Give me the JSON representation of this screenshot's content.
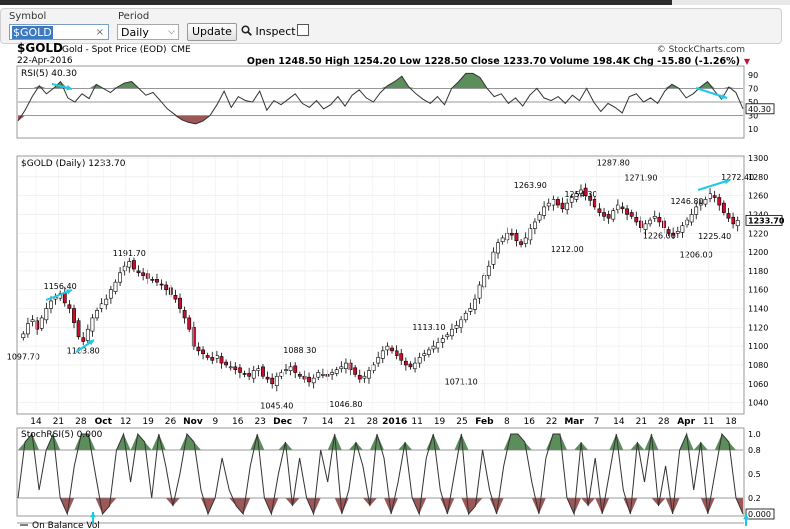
{
  "toolbar": {
    "symbol_label": "Symbol",
    "symbol_value": "$GOLD",
    "period_label": "Period",
    "period_value": "Daily",
    "update_label": "Update",
    "inspect_label": "Inspect"
  },
  "header": {
    "ticker": "$GOLD",
    "name": "Gold - Spot Price (EOD)",
    "exchange": "CME",
    "date": "22-Apr-2016",
    "source": "© StockCharts.com",
    "ohlc_text": "Open 1248.50  High 1254.20  Low 1228.50  Close 1233.70  Volume 198.4K  Chg -15.80 (-1.26%)",
    "chg_arrow": "▼"
  },
  "colors": {
    "up_candle": "#ffffff",
    "down_candle": "#c8102e",
    "overbought_fill": "#3f7a3f",
    "oversold_fill": "#8b3b3b",
    "annotation_arrow": "#1ec8e6"
  },
  "chart_data": [
    {
      "type": "line",
      "panel": "indicator",
      "title": "RSI(5) 40.30",
      "yticks": [
        10,
        30,
        50,
        70,
        90
      ],
      "ylim": [
        0,
        100
      ],
      "reference_lines": [
        30,
        50,
        70
      ],
      "last_value_label": "40.30",
      "values": [
        22,
        38,
        58,
        74,
        62,
        70,
        80,
        56,
        50,
        62,
        55,
        76,
        70,
        64,
        72,
        78,
        80,
        70,
        60,
        64,
        52,
        40,
        32,
        24,
        20,
        18,
        22,
        30,
        46,
        66,
        42,
        58,
        52,
        50,
        66,
        38,
        52,
        46,
        54,
        62,
        48,
        42,
        52,
        40,
        46,
        58,
        44,
        60,
        68,
        56,
        50,
        64,
        74,
        80,
        88,
        72,
        62,
        54,
        48,
        58,
        46,
        70,
        80,
        92,
        92,
        86,
        70,
        58,
        62,
        48,
        56,
        44,
        60,
        70,
        56,
        52,
        58,
        48,
        60,
        52,
        70,
        50,
        36,
        48,
        42,
        34,
        58,
        62,
        50,
        56,
        48,
        66,
        76,
        70,
        56,
        62,
        72,
        80,
        66,
        54,
        72,
        64,
        40
      ]
    },
    {
      "type": "candlestick",
      "panel": "price",
      "title": "$GOLD (Daily) 1233.70",
      "ylim": [
        1030,
        1300
      ],
      "yticks": [
        1040,
        1060,
        1080,
        1100,
        1120,
        1140,
        1160,
        1180,
        1200,
        1220,
        1240,
        1260,
        1280,
        1300
      ],
      "xtick_labels": [
        "14",
        "21",
        "28",
        "Oct",
        "12",
        "19",
        "26",
        "Nov",
        "9",
        "16",
        "23",
        "Dec",
        "7",
        "14",
        "21",
        "28",
        "2016",
        "11",
        "19",
        "25",
        "Feb",
        "8",
        "16",
        "22",
        "Mar",
        "7",
        "14",
        "21",
        "28",
        "Apr",
        "11",
        "18"
      ],
      "last_price_label": "1233.70",
      "closes": [
        1113,
        1124,
        1128,
        1118,
        1130,
        1140,
        1148,
        1152,
        1156,
        1146,
        1140,
        1125,
        1110,
        1105,
        1118,
        1130,
        1138,
        1145,
        1150,
        1160,
        1168,
        1178,
        1185,
        1190,
        1182,
        1178,
        1175,
        1172,
        1170,
        1168,
        1165,
        1160,
        1155,
        1150,
        1140,
        1130,
        1118,
        1100,
        1095,
        1092,
        1088,
        1085,
        1090,
        1082,
        1080,
        1078,
        1075,
        1072,
        1070,
        1068,
        1074,
        1076,
        1068,
        1065,
        1060,
        1068,
        1072,
        1075,
        1078,
        1072,
        1068,
        1065,
        1062,
        1066,
        1072,
        1070,
        1068,
        1072,
        1075,
        1078,
        1082,
        1075,
        1070,
        1065,
        1068,
        1074,
        1080,
        1088,
        1095,
        1100,
        1095,
        1090,
        1085,
        1080,
        1078,
        1082,
        1088,
        1092,
        1096,
        1100,
        1104,
        1108,
        1112,
        1118,
        1122,
        1128,
        1135,
        1140,
        1150,
        1165,
        1175,
        1185,
        1200,
        1210,
        1215,
        1220,
        1218,
        1212,
        1208,
        1215,
        1225,
        1232,
        1240,
        1248,
        1252,
        1256,
        1250,
        1246,
        1252,
        1258,
        1262,
        1266,
        1260,
        1255,
        1248,
        1242,
        1238,
        1236,
        1244,
        1250,
        1246,
        1240,
        1238,
        1232,
        1226,
        1230,
        1234,
        1238,
        1232,
        1226,
        1220,
        1218,
        1222,
        1228,
        1234,
        1240,
        1248,
        1252,
        1256,
        1262,
        1258,
        1250,
        1242,
        1236,
        1230,
        1233.7
      ],
      "annotations": [
        {
          "text": "1097.70",
          "idx": 0,
          "price": 1097.7,
          "pos": "below"
        },
        {
          "text": "1156.40",
          "idx": 8,
          "price": 1156.4,
          "pos": "above"
        },
        {
          "text": "1103.80",
          "idx": 13,
          "price": 1103.8,
          "pos": "below"
        },
        {
          "text": "1191.70",
          "idx": 23,
          "price": 1191.7,
          "pos": "above"
        },
        {
          "text": "1045.40",
          "idx": 55,
          "price": 1045.4,
          "pos": "below"
        },
        {
          "text": "1088.30",
          "idx": 60,
          "price": 1088.3,
          "pos": "above"
        },
        {
          "text": "1046.80",
          "idx": 70,
          "price": 1046.8,
          "pos": "below"
        },
        {
          "text": "1113.10",
          "idx": 88,
          "price": 1113.1,
          "pos": "above"
        },
        {
          "text": "1071.10",
          "idx": 95,
          "price": 1071.1,
          "pos": "below"
        },
        {
          "text": "1263.90",
          "idx": 110,
          "price": 1263.9,
          "pos": "above"
        },
        {
          "text": "1212.00",
          "idx": 118,
          "price": 1212.0,
          "pos": "below"
        },
        {
          "text": "1254.30",
          "idx": 121,
          "price": 1254.3,
          "pos": "above"
        },
        {
          "text": "1287.80",
          "idx": 128,
          "price": 1287.8,
          "pos": "above"
        },
        {
          "text": "1271.90",
          "idx": 134,
          "price": 1271.9,
          "pos": "above"
        },
        {
          "text": "1226.00",
          "idx": 138,
          "price": 1226.0,
          "pos": "below"
        },
        {
          "text": "1246.80",
          "idx": 144,
          "price": 1246.8,
          "pos": "above"
        },
        {
          "text": "1206.00",
          "idx": 146,
          "price": 1206.0,
          "pos": "below"
        },
        {
          "text": "1225.40",
          "idx": 150,
          "price": 1225.4,
          "pos": "below"
        },
        {
          "text": "1272.40",
          "idx": 155,
          "price": 1272.4,
          "pos": "above"
        }
      ]
    },
    {
      "type": "line",
      "panel": "indicator",
      "title": "StochRSI(5) 0.000",
      "yticks": [
        0.2,
        0.5,
        0.8,
        1.0
      ],
      "ylim": [
        0,
        1
      ],
      "reference_lines": [
        0.2,
        0.8
      ],
      "last_value_label": "0.000",
      "values": [
        0.2,
        0.9,
        1.0,
        0.3,
        0.8,
        1.0,
        0.2,
        0.0,
        0.6,
        1.0,
        1.0,
        0.5,
        0.0,
        0.1,
        0.8,
        1.0,
        0.4,
        1.0,
        0.9,
        0.2,
        1.0,
        0.6,
        0.1,
        0.5,
        1.0,
        0.9,
        0.3,
        0.0,
        0.2,
        0.7,
        0.3,
        0.1,
        0.0,
        0.6,
        1.0,
        0.2,
        0.0,
        0.5,
        0.9,
        0.1,
        0.7,
        0.2,
        0.0,
        0.8,
        0.4,
        1.0,
        0.0,
        0.3,
        0.9,
        0.6,
        0.1,
        1.0,
        0.7,
        0.0,
        0.4,
        0.9,
        0.2,
        0.0,
        0.7,
        1.0,
        0.3,
        0.0,
        0.5,
        1.0,
        0.0,
        0.1,
        0.8,
        0.3,
        0.0,
        0.6,
        1.0,
        1.0,
        0.9,
        0.4,
        0.0,
        0.7,
        1.0,
        1.0,
        0.2,
        0.0,
        0.9,
        0.1,
        0.7,
        0.0,
        0.5,
        1.0,
        0.3,
        0.0,
        0.9,
        0.4,
        1.0,
        0.1,
        0.6,
        0.0,
        0.8,
        1.0,
        0.3,
        0.9,
        0.0,
        0.5,
        1.0,
        0.9,
        0.2,
        0.0
      ]
    }
  ],
  "bottom_panel": {
    "title": "On Balance Vol"
  }
}
